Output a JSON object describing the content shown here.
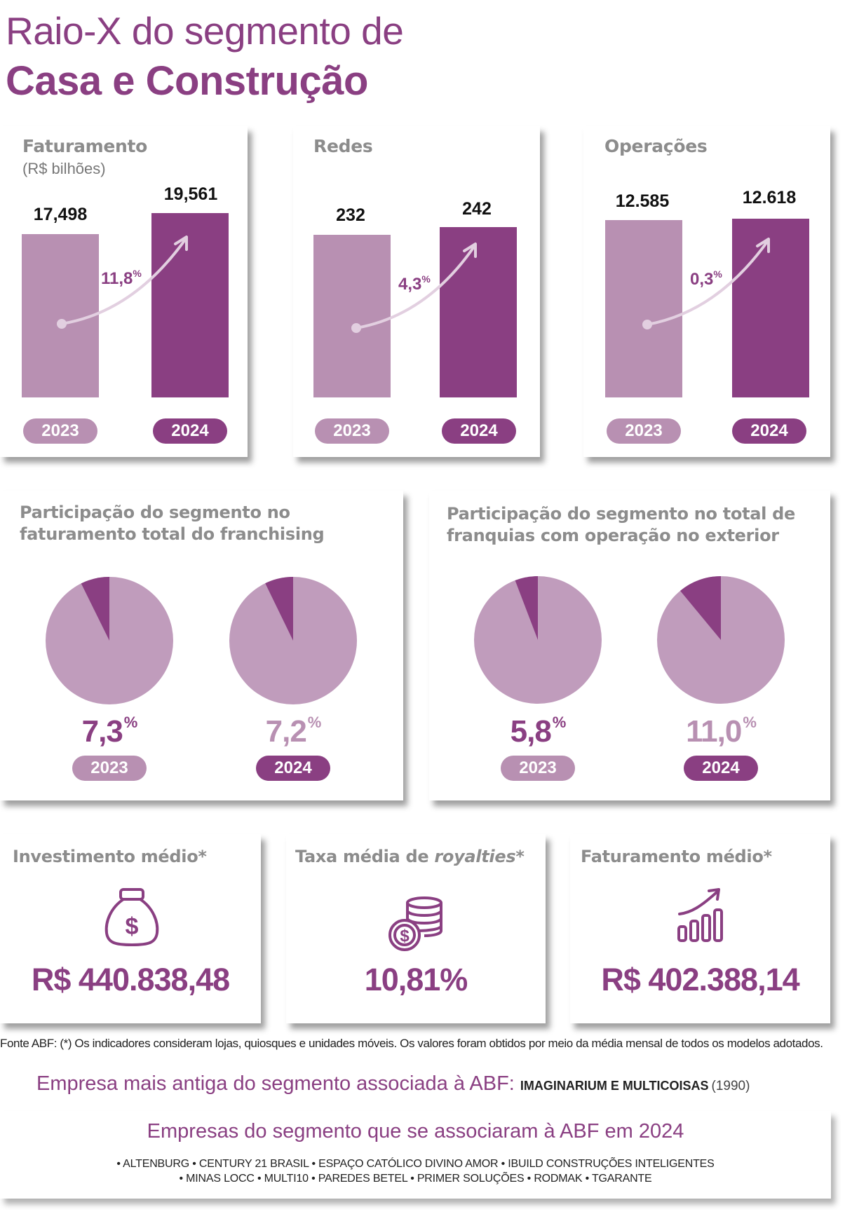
{
  "header": {
    "title_line1": "Raio-X do segmento de",
    "title_line2": "Casa e Construção"
  },
  "colors": {
    "dark": "#8a3f82",
    "light": "#b890b2",
    "pie_bg": "#c09cbc",
    "arrow": "#e2cfe0"
  },
  "chart_data": [
    {
      "type": "bar",
      "title": "Faturamento",
      "subtitle": "(R$ bilhões)",
      "categories": [
        "2023",
        "2024"
      ],
      "values": [
        17.498,
        19.561
      ],
      "value_labels": [
        "17,498",
        "19,561"
      ],
      "growth": "11,8",
      "growth_unit": "%"
    },
    {
      "type": "bar",
      "title": "Redes",
      "categories": [
        "2023",
        "2024"
      ],
      "values": [
        232,
        242
      ],
      "value_labels": [
        "232",
        "242"
      ],
      "growth": "4,3",
      "growth_unit": "%"
    },
    {
      "type": "bar",
      "title": "Operações",
      "categories": [
        "2023",
        "2024"
      ],
      "values": [
        12585,
        12618
      ],
      "value_labels": [
        "12.585",
        "12.618"
      ],
      "growth": "0,3",
      "growth_unit": "%"
    },
    {
      "type": "pie",
      "title": "Participação do segmento no faturamento total do franchising",
      "title_line1": "Participação do segmento no",
      "title_line2": "faturamento total do franchising",
      "categories": [
        "2023",
        "2024"
      ],
      "values": [
        7.3,
        7.2
      ],
      "value_labels": [
        "7,3",
        "7,2"
      ],
      "unit": "%"
    },
    {
      "type": "pie",
      "title": "Participação do segmento no total de franquias com operação no exterior",
      "title_line1": "Participação do segmento no total de",
      "title_line2": "franquias com operação no exterior",
      "categories": [
        "2023",
        "2024"
      ],
      "values": [
        5.8,
        11.0
      ],
      "value_labels": [
        "5,8",
        "11,0"
      ],
      "unit": "%"
    }
  ],
  "kpis": [
    {
      "title": "Investimento médio",
      "suffix": "*",
      "value": "R$ 440.838,48",
      "icon": "money-bag-icon"
    },
    {
      "title_prefix": "Taxa média de ",
      "title_italic": "royalties",
      "suffix": "*",
      "value": "10,81%",
      "icon": "coins-stack-icon"
    },
    {
      "title": "Faturamento médio",
      "suffix": "*",
      "value": "R$ 402.388,14",
      "icon": "growth-chart-icon"
    }
  ],
  "footnote": "Fonte ABF: (*) Os indicadores consideram lojas, quiosques e unidades móveis. Os valores foram obtidos por meio da média mensal de todos os modelos adotados.",
  "oldest": {
    "label": "Empresa mais antiga do segmento associada à ABF:",
    "name": "IMAGINARIUM E MULTICOISAS",
    "year": "(1990)"
  },
  "joined": {
    "title": "Empresas do segmento que se associaram à ABF em 2024",
    "line1": "• ALTENBURG • CENTURY 21 BRASIL • ESPAÇO CATÓLICO DIVINO AMOR • IBUILD CONSTRUÇÕES INTELIGENTES",
    "line2": "• MINAS LOCC • MULTI10 • PAREDES BETEL • PRIMER SOLUÇÕES • RODMAK • TGARANTE"
  }
}
